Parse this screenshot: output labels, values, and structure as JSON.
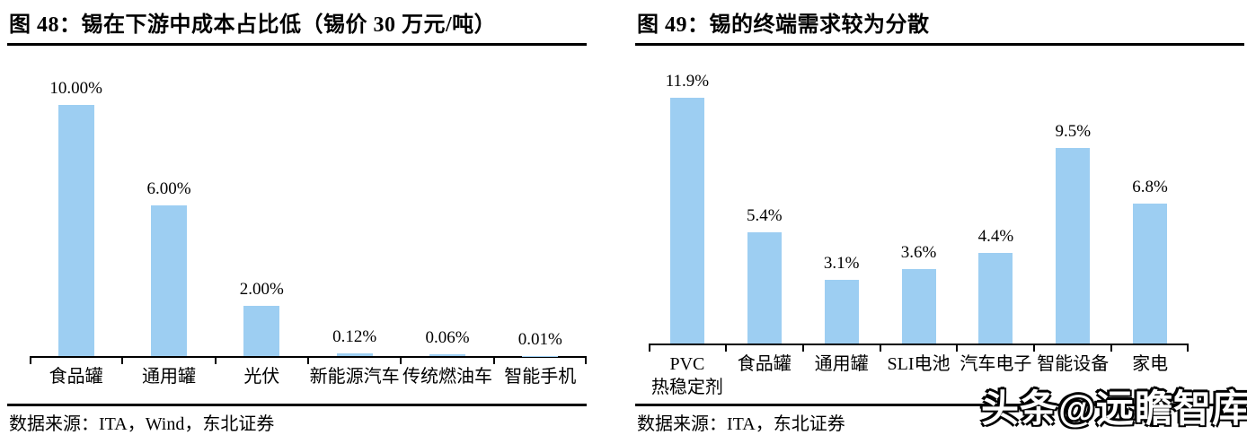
{
  "page": {
    "watermark": "头条@远瞻智库"
  },
  "chart_data": [
    {
      "type": "bar",
      "title": "图 48：锡在下游中成本占比低（锡价 30 万元/吨）",
      "source": "数据来源：ITA，Wind，东北证券",
      "categories": [
        "食品罐",
        "通用罐",
        "光伏",
        "新能源汽车",
        "传统燃油车",
        "智能手机"
      ],
      "values": [
        10.0,
        6.0,
        2.0,
        0.12,
        0.06,
        0.01
      ],
      "value_labels": [
        "10.00%",
        "6.00%",
        "2.00%",
        "0.12%",
        "0.06%",
        "0.01%"
      ],
      "bar_color": "#9DCEF2",
      "xlabel": "",
      "ylabel": "",
      "ylim": [
        0,
        12
      ],
      "grid": false,
      "legend": "none"
    },
    {
      "type": "bar",
      "title": "图 49：锡的终端需求较为分散",
      "source": "数据来源：ITA，东北证券",
      "categories": [
        "PVC\n热稳定剂",
        "食品罐",
        "通用罐",
        "SLI电池",
        "汽车电子",
        "智能设备",
        "家电"
      ],
      "values": [
        11.9,
        5.4,
        3.1,
        3.6,
        4.4,
        9.5,
        6.8
      ],
      "value_labels": [
        "11.9%",
        "5.4%",
        "3.1%",
        "3.6%",
        "4.4%",
        "9.5%",
        "6.8%"
      ],
      "bar_color": "#9DCEF2",
      "xlabel": "",
      "ylabel": "",
      "ylim": [
        0,
        14
      ],
      "grid": false,
      "legend": "none"
    }
  ]
}
